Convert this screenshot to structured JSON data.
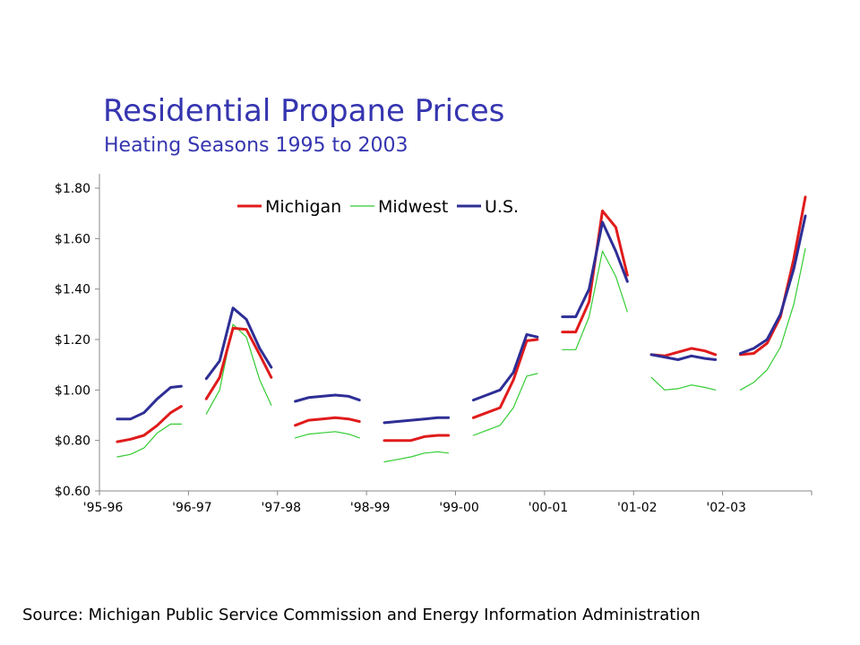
{
  "title": "Residential Propane Prices",
  "subtitle": "Heating Seasons 1995 to 2003",
  "source": "Source: Michigan Public Service Commission and Energy Information Administration",
  "colors": {
    "title": "#3535b0",
    "michigan": "#e01b1b",
    "midwest": "#33cc33",
    "us": "#2e2e96",
    "axis": "#888888"
  },
  "chart_data": {
    "type": "line",
    "title": "Residential Propane Prices",
    "subtitle": "Heating Seasons 1995 to 2003",
    "xlabel": "",
    "ylabel": "",
    "x_ticks": [
      "'95-96",
      "'96-97",
      "'97-98",
      "'98-99",
      "'99-00",
      "'00-01",
      "'01-02",
      "'02-03"
    ],
    "ylim": [
      0.6,
      1.8
    ],
    "y_ticks": [
      0.6,
      0.8,
      1.0,
      1.2,
      1.4,
      1.6,
      1.8
    ],
    "y_tick_labels": [
      "$0.60",
      "$0.80",
      "$1.00",
      "$1.20",
      "$1.40",
      "$1.60",
      "$1.80"
    ],
    "x_unit_note": "Each heating season spans one unit of x, starting at its tick label; data are monthly points within each season.",
    "xlim": [
      0,
      8
    ],
    "grid": false,
    "legend_position": "top-center",
    "series": [
      {
        "name": "Michigan",
        "color": "#e01b1b",
        "segments": [
          {
            "x": [
              0.2,
              0.35,
              0.5,
              0.65,
              0.8,
              0.92
            ],
            "y": [
              0.795,
              0.805,
              0.82,
              0.86,
              0.91,
              0.935
            ]
          },
          {
            "x": [
              1.2,
              1.35,
              1.5,
              1.65,
              1.8,
              1.93
            ],
            "y": [
              0.965,
              1.05,
              1.245,
              1.24,
              1.14,
              1.05
            ]
          },
          {
            "x": [
              2.2,
              2.35,
              2.5,
              2.65,
              2.8,
              2.92
            ],
            "y": [
              0.86,
              0.88,
              0.885,
              0.89,
              0.885,
              0.875
            ]
          },
          {
            "x": [
              3.2,
              3.35,
              3.5,
              3.65,
              3.8,
              3.92
            ],
            "y": [
              0.8,
              0.8,
              0.8,
              0.815,
              0.82,
              0.82
            ]
          },
          {
            "x": [
              4.2,
              4.35,
              4.5,
              4.65,
              4.8,
              4.92
            ],
            "y": [
              0.89,
              0.91,
              0.93,
              1.04,
              1.195,
              1.2
            ]
          },
          {
            "x": [
              5.2,
              5.35,
              5.5,
              5.65,
              5.8,
              5.93
            ],
            "y": [
              1.23,
              1.23,
              1.35,
              1.71,
              1.645,
              1.455
            ]
          },
          {
            "x": [
              6.2,
              6.35,
              6.5,
              6.65,
              6.8,
              6.92
            ],
            "y": [
              1.14,
              1.135,
              1.15,
              1.165,
              1.155,
              1.14
            ]
          },
          {
            "x": [
              7.2,
              7.35,
              7.5,
              7.65,
              7.8,
              7.93
            ],
            "y": [
              1.14,
              1.145,
              1.185,
              1.29,
              1.52,
              1.765
            ]
          }
        ]
      },
      {
        "name": "Midwest",
        "color": "#33cc33",
        "segments": [
          {
            "x": [
              0.2,
              0.35,
              0.5,
              0.65,
              0.8,
              0.92
            ],
            "y": [
              0.735,
              0.745,
              0.77,
              0.83,
              0.865,
              0.865
            ]
          },
          {
            "x": [
              1.2,
              1.35,
              1.5,
              1.65,
              1.8,
              1.93
            ],
            "y": [
              0.905,
              1.0,
              1.26,
              1.21,
              1.04,
              0.94
            ]
          },
          {
            "x": [
              2.2,
              2.35,
              2.5,
              2.65,
              2.8,
              2.92
            ],
            "y": [
              0.81,
              0.825,
              0.83,
              0.835,
              0.825,
              0.81
            ]
          },
          {
            "x": [
              3.2,
              3.35,
              3.5,
              3.65,
              3.8,
              3.92
            ],
            "y": [
              0.715,
              0.725,
              0.735,
              0.75,
              0.755,
              0.75
            ]
          },
          {
            "x": [
              4.2,
              4.35,
              4.5,
              4.65,
              4.8,
              4.92
            ],
            "y": [
              0.82,
              0.84,
              0.86,
              0.93,
              1.055,
              1.065
            ]
          },
          {
            "x": [
              5.2,
              5.35,
              5.5,
              5.65,
              5.8,
              5.93
            ],
            "y": [
              1.16,
              1.16,
              1.29,
              1.55,
              1.45,
              1.31
            ]
          },
          {
            "x": [
              6.2,
              6.35,
              6.5,
              6.65,
              6.8,
              6.92
            ],
            "y": [
              1.05,
              1.0,
              1.005,
              1.02,
              1.01,
              1.0
            ]
          },
          {
            "x": [
              7.2,
              7.35,
              7.5,
              7.65,
              7.8,
              7.93
            ],
            "y": [
              1.0,
              1.03,
              1.08,
              1.17,
              1.34,
              1.56
            ]
          }
        ]
      },
      {
        "name": "U.S.",
        "color": "#2e2e96",
        "segments": [
          {
            "x": [
              0.2,
              0.35,
              0.5,
              0.65,
              0.8,
              0.92
            ],
            "y": [
              0.885,
              0.885,
              0.91,
              0.965,
              1.01,
              1.015
            ]
          },
          {
            "x": [
              1.2,
              1.35,
              1.5,
              1.65,
              1.8,
              1.93
            ],
            "y": [
              1.045,
              1.115,
              1.325,
              1.28,
              1.165,
              1.09
            ]
          },
          {
            "x": [
              2.2,
              2.35,
              2.5,
              2.65,
              2.8,
              2.92
            ],
            "y": [
              0.955,
              0.97,
              0.975,
              0.98,
              0.975,
              0.96
            ]
          },
          {
            "x": [
              3.2,
              3.35,
              3.5,
              3.65,
              3.8,
              3.92
            ],
            "y": [
              0.87,
              0.875,
              0.88,
              0.885,
              0.89,
              0.89
            ]
          },
          {
            "x": [
              4.2,
              4.35,
              4.5,
              4.65,
              4.8,
              4.92
            ],
            "y": [
              0.96,
              0.98,
              1.0,
              1.07,
              1.22,
              1.21
            ]
          },
          {
            "x": [
              5.2,
              5.35,
              5.5,
              5.65,
              5.8,
              5.93
            ],
            "y": [
              1.29,
              1.29,
              1.4,
              1.665,
              1.55,
              1.43
            ]
          },
          {
            "x": [
              6.2,
              6.35,
              6.5,
              6.65,
              6.8,
              6.92
            ],
            "y": [
              1.14,
              1.13,
              1.12,
              1.135,
              1.125,
              1.12
            ]
          },
          {
            "x": [
              7.2,
              7.35,
              7.5,
              7.65,
              7.8,
              7.93
            ],
            "y": [
              1.145,
              1.165,
              1.2,
              1.3,
              1.48,
              1.69
            ]
          }
        ]
      }
    ]
  }
}
